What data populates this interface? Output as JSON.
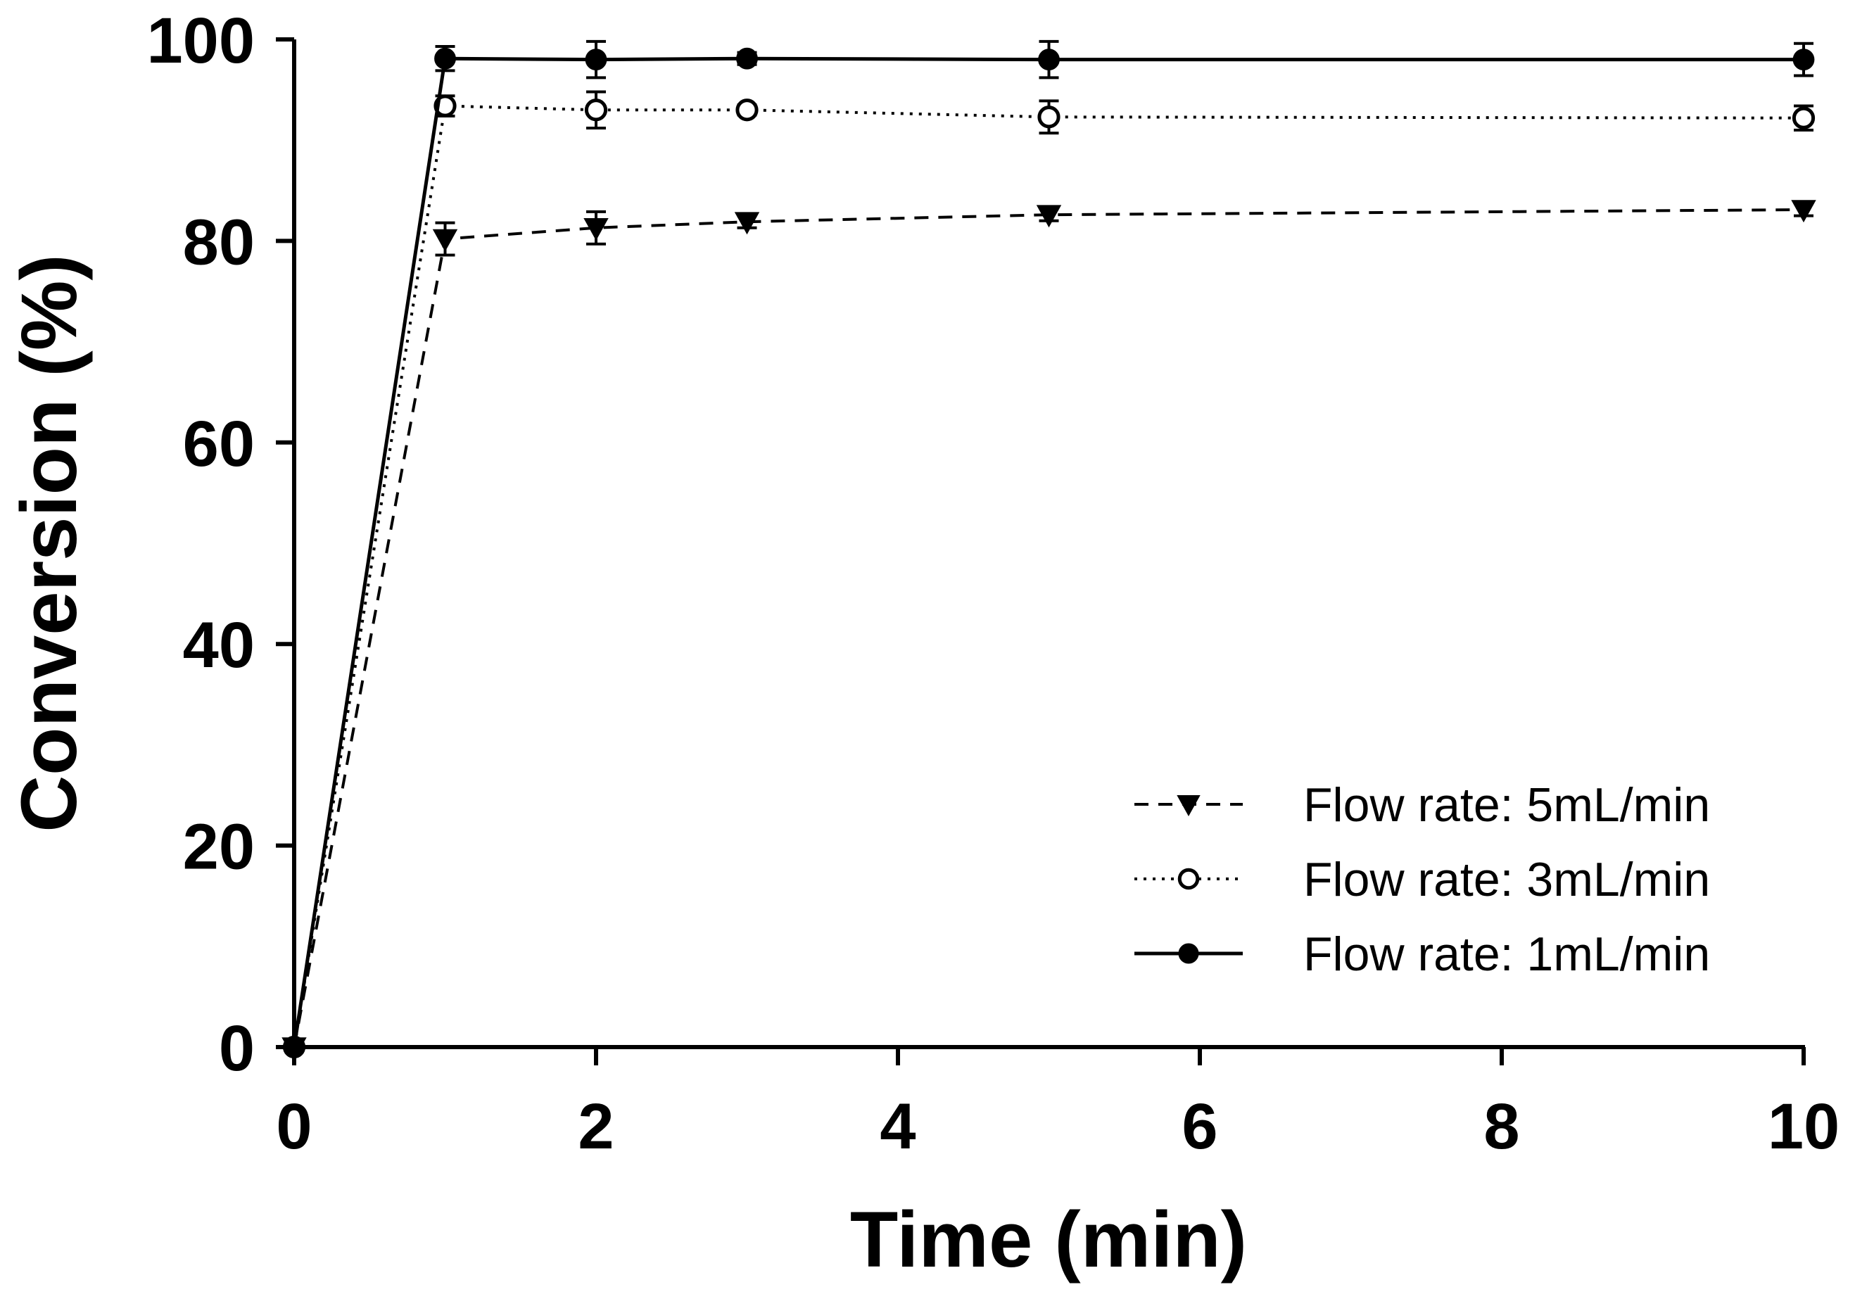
{
  "chart_data": {
    "type": "line",
    "title": "",
    "xlabel": "Time (min)",
    "ylabel": "Conversion (%)",
    "xlim": [
      0,
      10
    ],
    "ylim": [
      0,
      100
    ],
    "xticks": [
      0,
      2,
      4,
      6,
      8,
      10
    ],
    "yticks": [
      0,
      20,
      40,
      60,
      80,
      100
    ],
    "grid": false,
    "legend_position": "bottom-right",
    "series": [
      {
        "name": "Flow  rate: 5mL/min",
        "marker": "triangle-down-filled",
        "line_style": "dashed",
        "color": "#000000",
        "x": [
          0,
          1,
          2,
          3,
          5,
          10
        ],
        "y": [
          0,
          80.2,
          81.3,
          81.9,
          82.6,
          83.1
        ],
        "err": [
          0,
          1.6,
          1.6,
          0.6,
          0.6,
          0.6
        ]
      },
      {
        "name": "Flow  rate: 3mL/min",
        "marker": "circle-open",
        "line_style": "dotted",
        "color": "#000000",
        "x": [
          0,
          1,
          2,
          3,
          5,
          10
        ],
        "y": [
          0,
          93.4,
          93.0,
          93.0,
          92.3,
          92.2
        ],
        "err": [
          0,
          1.0,
          1.8,
          0.5,
          1.6,
          1.2
        ]
      },
      {
        "name": "Flow  rate: 1mL/min",
        "marker": "circle-filled",
        "line_style": "solid",
        "color": "#000000",
        "x": [
          0,
          1,
          2,
          3,
          5,
          10
        ],
        "y": [
          0,
          98.1,
          98.0,
          98.1,
          98.0,
          98.0
        ],
        "err": [
          0,
          1.2,
          1.8,
          0.6,
          1.8,
          1.6
        ]
      }
    ]
  }
}
